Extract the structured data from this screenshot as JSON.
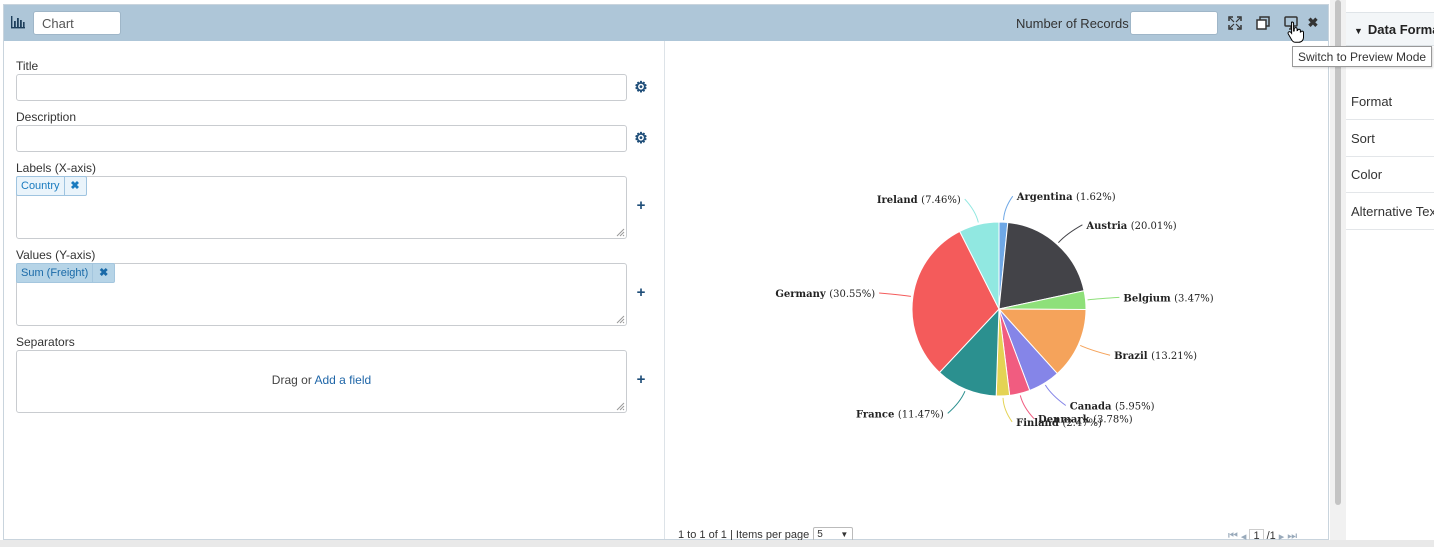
{
  "header": {
    "chart_name": "Chart",
    "records_label": "Number of Records",
    "records_value": ""
  },
  "form": {
    "title_label": "Title",
    "description_label": "Description",
    "labels_label": "Labels (X-axis)",
    "labels_chip": "Country",
    "values_label": "Values (Y-axis)",
    "values_chip": "Sum (Freight)",
    "separators_label": "Separators",
    "drag_text": "Drag or",
    "add_field": "Add a field"
  },
  "preview": {
    "pager_text": "1 to 1 of 1 | Items per page",
    "items_per_page": "5",
    "page_current": "1",
    "page_total": "/1"
  },
  "tooltip": "Switch to Preview Mode",
  "panel": {
    "header": "Data Format",
    "items": [
      "Format",
      "Sort",
      "Color",
      "Alternative Text"
    ]
  },
  "chart_data": {
    "type": "pie",
    "slices": [
      {
        "label": "Argentina",
        "pct": "(1.62%)",
        "value": 1.62,
        "color": "#6fa8e6"
      },
      {
        "label": "Austria",
        "pct": "(20.01%)",
        "value": 20.01,
        "color": "#434348"
      },
      {
        "label": "Belgium",
        "pct": "(3.47%)",
        "value": 3.47,
        "color": "#8ee07a"
      },
      {
        "label": "Brazil",
        "pct": "(13.21%)",
        "value": 13.21,
        "color": "#f5a35b"
      },
      {
        "label": "Canada",
        "pct": "(5.95%)",
        "value": 5.95,
        "color": "#8585e8"
      },
      {
        "label": "Denmark",
        "pct": "(3.78%)",
        "value": 3.78,
        "color": "#f15c80"
      },
      {
        "label": "Finland",
        "pct": "(2.47%)",
        "value": 2.47,
        "color": "#e4d354"
      },
      {
        "label": "France",
        "pct": "(11.47%)",
        "value": 11.47,
        "color": "#2b908f"
      },
      {
        "label": "Germany",
        "pct": "(30.55%)",
        "value": 30.55,
        "color": "#f45b5b"
      },
      {
        "label": "Ireland",
        "pct": "(7.46%)",
        "value": 7.46,
        "color": "#91e8e1"
      }
    ]
  }
}
